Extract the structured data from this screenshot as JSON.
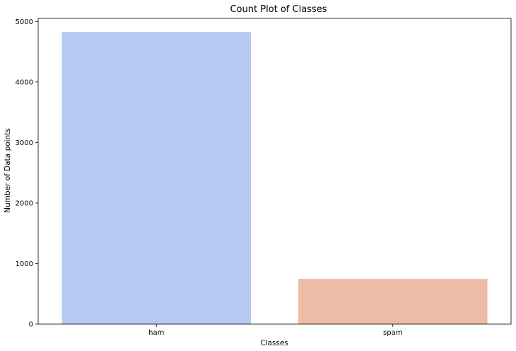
{
  "chart_data": {
    "type": "bar",
    "title": "Count Plot of Classes",
    "xlabel": "Classes",
    "ylabel": "Number of Data points",
    "categories": [
      "ham",
      "spam"
    ],
    "values": [
      4825,
      747
    ],
    "colors": [
      "#b5c9f2",
      "#ecbca6"
    ],
    "ylim": [
      0,
      5000
    ],
    "yticks": [
      0,
      1000,
      2000,
      3000,
      4000,
      5000
    ],
    "grid": false,
    "legend": "none"
  }
}
